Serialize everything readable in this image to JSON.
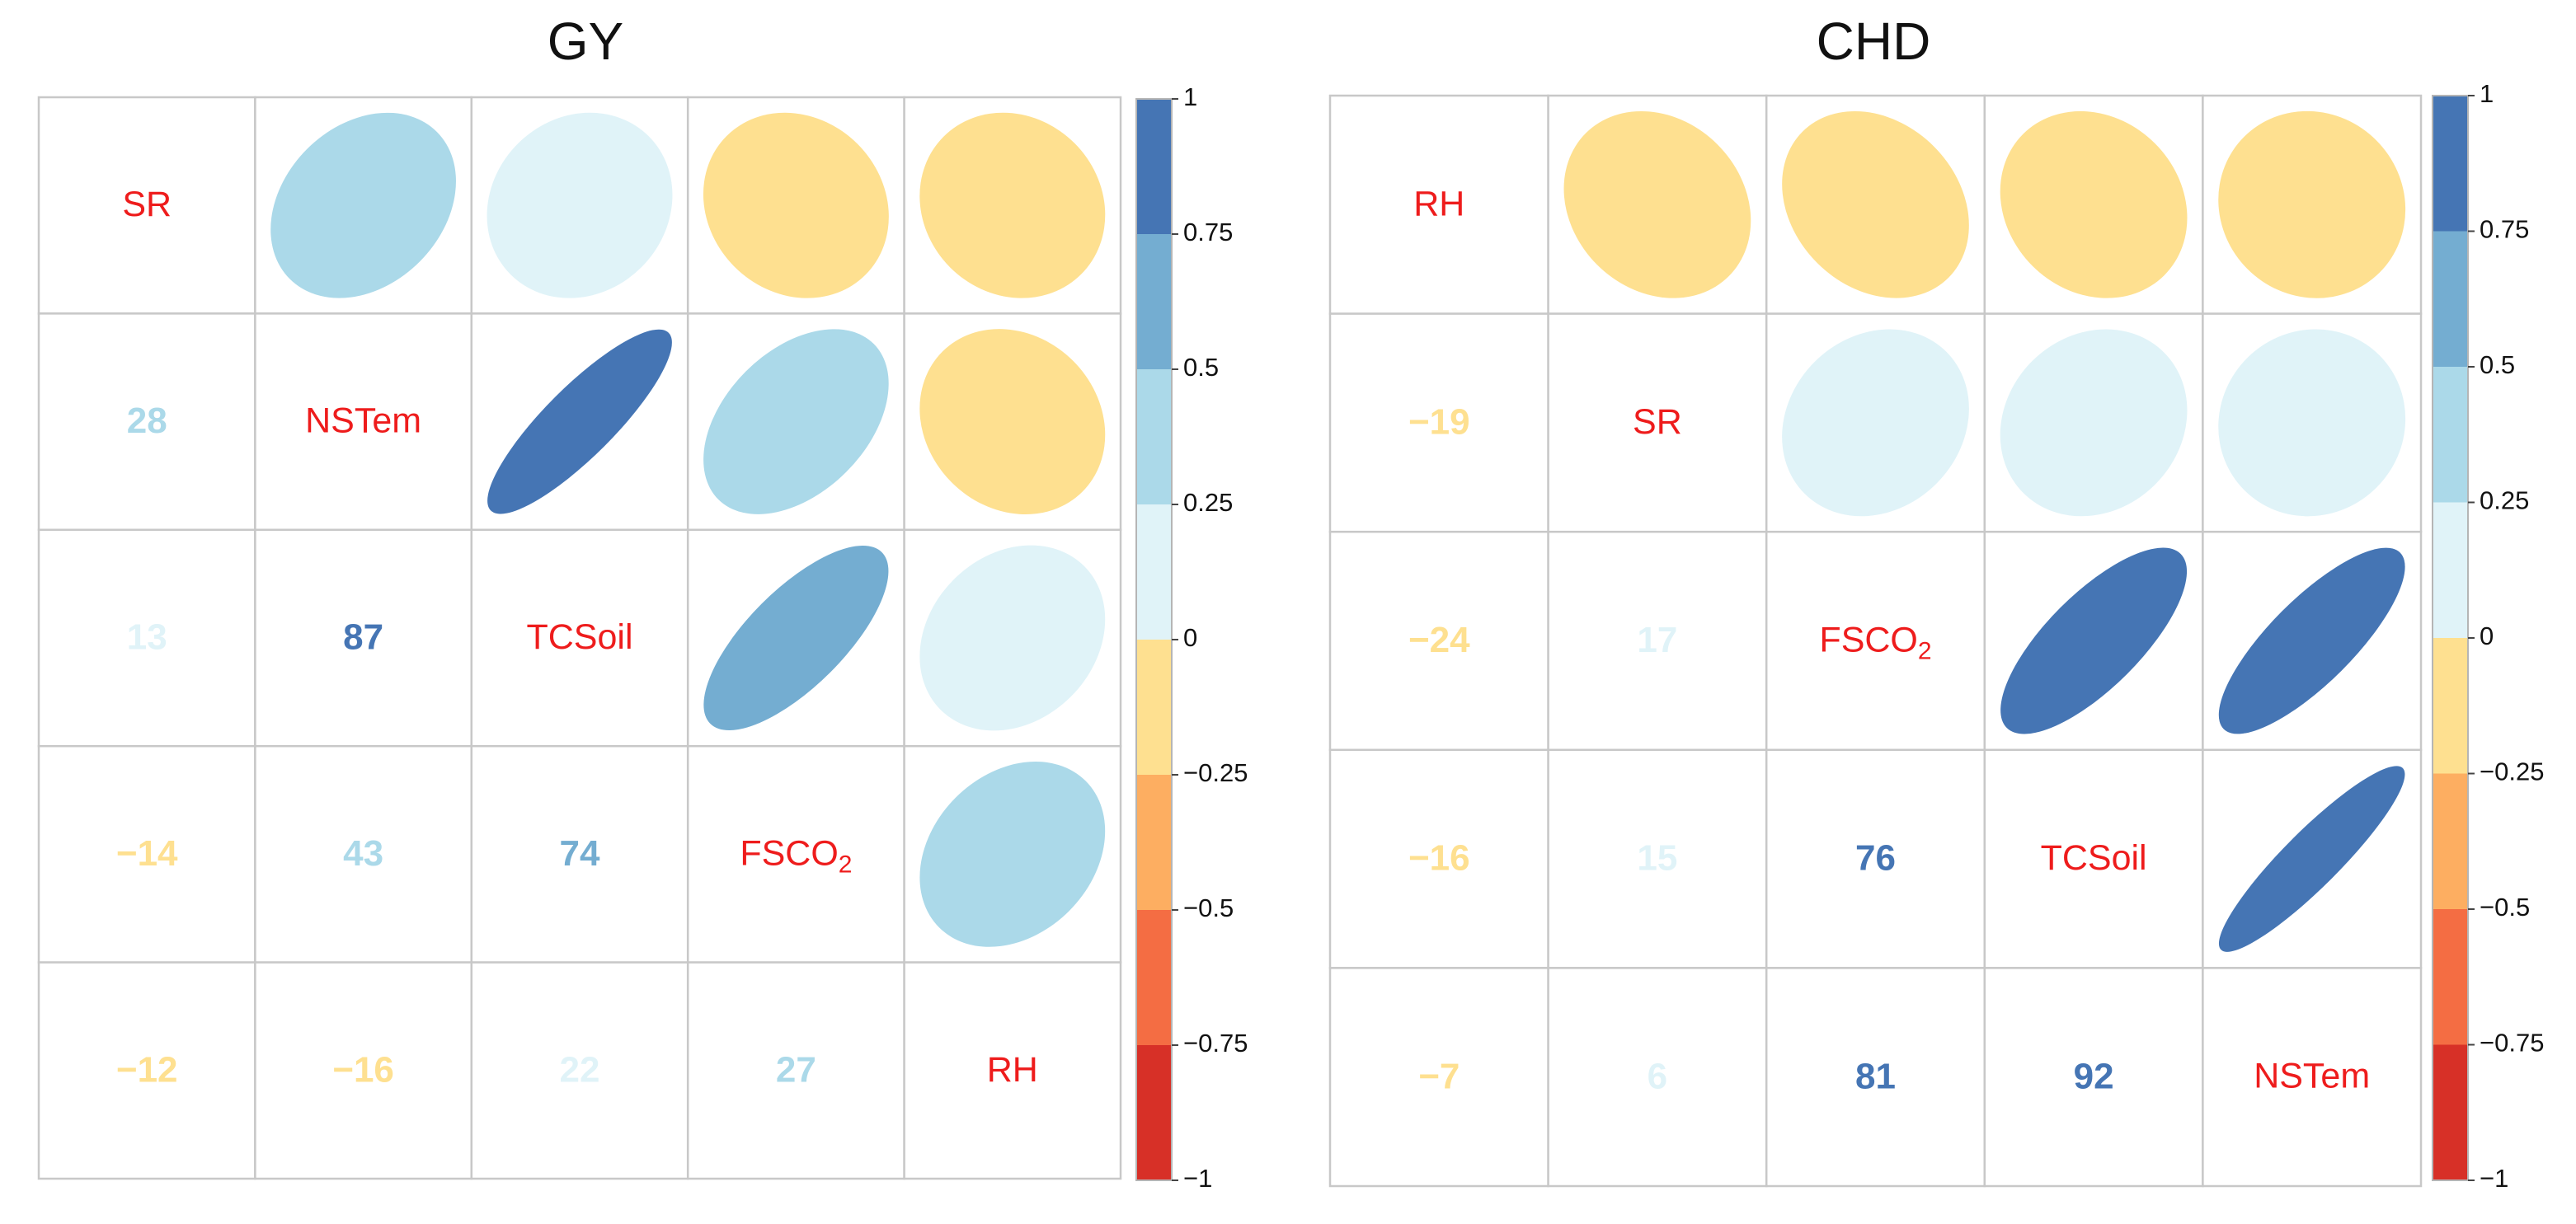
{
  "chart_data": [
    {
      "type": "heatmap",
      "subtype": "correlation-matrix-mixed",
      "title": "GY",
      "variables": [
        "SR",
        "NSTem",
        "TCSoil",
        "FSCO2",
        "RH"
      ],
      "variable_labels": [
        {
          "main": "SR",
          "sub": ""
        },
        {
          "main": "NSTem",
          "sub": ""
        },
        {
          "main": "TCSoil",
          "sub": ""
        },
        {
          "main": "FSCO",
          "sub": "2"
        },
        {
          "main": "RH",
          "sub": ""
        }
      ],
      "lower": "numbers (correlation x 100)",
      "upper": "ellipses",
      "matrix": [
        [
          1.0,
          0.28,
          0.13,
          -0.14,
          -0.12
        ],
        [
          0.28,
          1.0,
          0.87,
          0.43,
          -0.16
        ],
        [
          0.13,
          0.87,
          1.0,
          0.74,
          0.22
        ],
        [
          -0.14,
          0.43,
          0.74,
          1.0,
          0.27
        ],
        [
          -0.12,
          -0.16,
          0.22,
          0.27,
          1.0
        ]
      ],
      "lower_labels": [
        [
          "",
          "",
          "",
          "",
          ""
        ],
        [
          "28",
          "",
          "",
          "",
          ""
        ],
        [
          "13",
          "87",
          "",
          "",
          ""
        ],
        [
          "−14",
          "43",
          "74",
          "",
          ""
        ],
        [
          "−12",
          "−16",
          "22",
          "27",
          ""
        ]
      ],
      "colorbar": {
        "range": [
          -1,
          1
        ],
        "tick_labels": [
          "1",
          "0.75",
          "0.5",
          "0.25",
          "0",
          "−0.25",
          "−0.5",
          "−0.75",
          "−1"
        ]
      }
    },
    {
      "type": "heatmap",
      "subtype": "correlation-matrix-mixed",
      "title": "CHD",
      "variables": [
        "RH",
        "SR",
        "FSCO2",
        "TCSoil",
        "NSTem"
      ],
      "variable_labels": [
        {
          "main": "RH",
          "sub": ""
        },
        {
          "main": "SR",
          "sub": ""
        },
        {
          "main": "FSCO",
          "sub": "2"
        },
        {
          "main": "TCSoil",
          "sub": ""
        },
        {
          "main": "NSTem",
          "sub": ""
        }
      ],
      "lower": "numbers (correlation x 100)",
      "upper": "ellipses",
      "matrix": [
        [
          1.0,
          -0.19,
          -0.24,
          -0.16,
          -0.07
        ],
        [
          -0.19,
          1.0,
          0.17,
          0.15,
          0.06
        ],
        [
          -0.24,
          0.17,
          1.0,
          0.76,
          0.81
        ],
        [
          -0.16,
          0.15,
          0.76,
          1.0,
          0.92
        ],
        [
          -0.07,
          0.06,
          0.81,
          0.92,
          1.0
        ]
      ],
      "lower_labels": [
        [
          "",
          "",
          "",
          "",
          ""
        ],
        [
          "−19",
          "",
          "",
          "",
          ""
        ],
        [
          "−24",
          "17",
          "",
          "",
          ""
        ],
        [
          "−16",
          "15",
          "76",
          "",
          ""
        ],
        [
          "−7",
          "6",
          "81",
          "92",
          ""
        ]
      ],
      "colorbar": {
        "range": [
          -1,
          1
        ],
        "tick_labels": [
          "1",
          "0.75",
          "0.5",
          "0.25",
          "0",
          "−0.25",
          "−0.5",
          "−0.75",
          "−1"
        ]
      }
    }
  ],
  "colors": {
    "diag_label": "#ee1c1c",
    "grid": "#c8c8c8",
    "bins": [
      "#d73027",
      "#f46d43",
      "#fdae61",
      "#fee090",
      "#e0f3f8",
      "#abd9e9",
      "#74add1",
      "#4575b4"
    ]
  }
}
